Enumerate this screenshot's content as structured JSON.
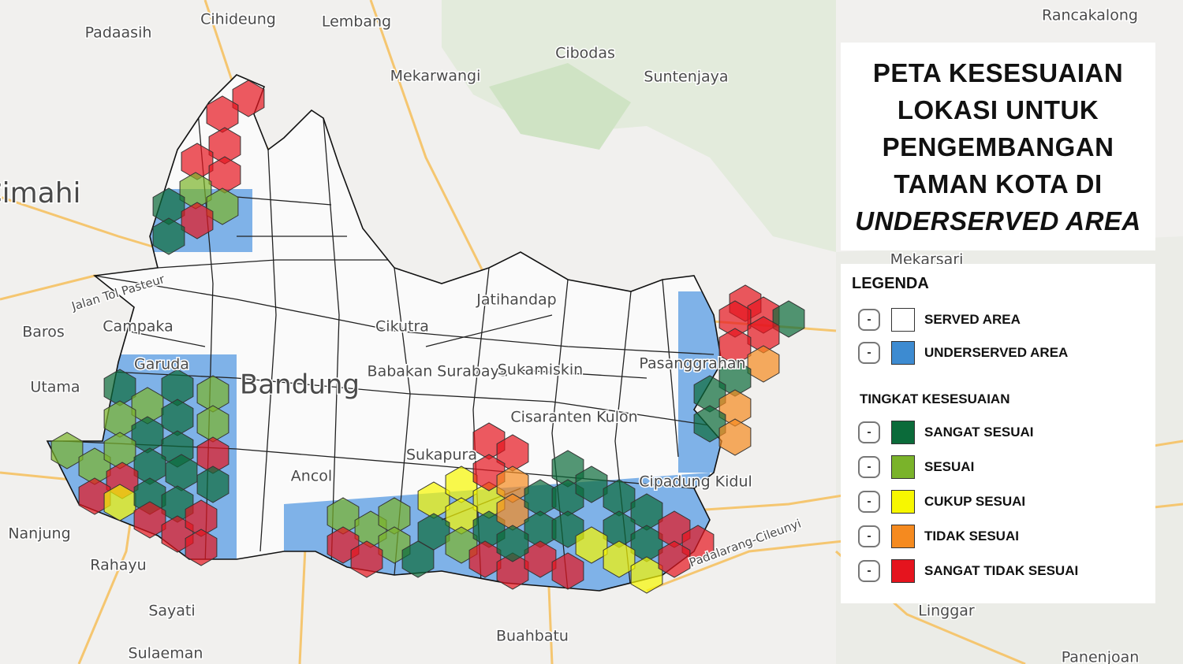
{
  "title": {
    "lines": [
      "PETA KESESUAIAN",
      "LOKASI UNTUK",
      "PENGEMBANGAN",
      "TAMAN KOTA DI",
      "UNDERSERVED AREA"
    ]
  },
  "map": {
    "places": [
      "Cihideung",
      "Lembang",
      "Padaasih",
      "Rancakalong",
      "Cibodas",
      "Mekarwangi",
      "Suntenjaya",
      "Cimahi",
      "Mekarsari",
      "Jatihandap",
      "Campaka",
      "Baros",
      "Cikutra",
      "Babakan Surabaya",
      "Sukamiskin",
      "Pasanggrahan",
      "Garuda",
      "Bandung",
      "Utama",
      "Cisaranten Kulon",
      "Cipadung Kidul",
      "Ancol",
      "Sukapura",
      "Nanjung",
      "Rahayu",
      "Sayati",
      "Buahbatu",
      "Linggar",
      "Sulaeman",
      "Panenjoan",
      "Jalan Tol Pasteur",
      "Padalarang-Cileunyi"
    ]
  },
  "legend": {
    "heading": "LEGENDA",
    "toggle": "-",
    "area_items": [
      {
        "label": "SERVED AREA",
        "color": "#ffffff"
      },
      {
        "label": "UNDERSERVED AREA",
        "color": "#3d8bd1"
      }
    ],
    "suitability_heading": "TINGKAT KESESUAIAN",
    "suitability_items": [
      {
        "label": "SANGAT SESUAI",
        "color": "#0b6b3a"
      },
      {
        "label": "SESUAI",
        "color": "#7ab32a"
      },
      {
        "label": "CUKUP SESUAI",
        "color": "#f7f700"
      },
      {
        "label": "TIDAK SESUAI",
        "color": "#f58a1f"
      },
      {
        "label": "SANGAT TIDAK SESUAI",
        "color": "#e5141e"
      }
    ]
  }
}
